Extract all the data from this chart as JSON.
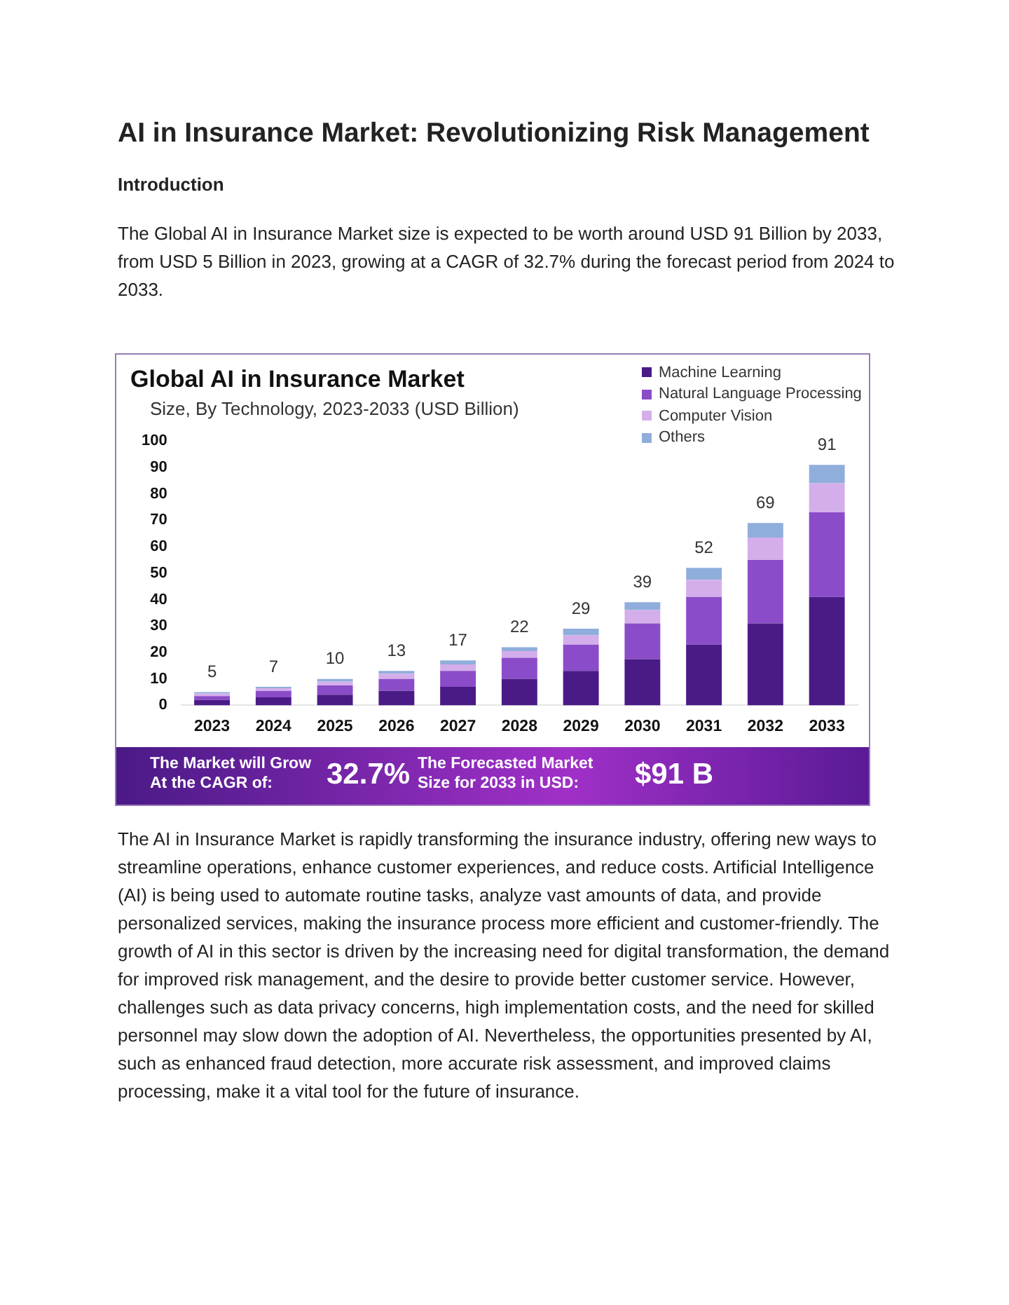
{
  "chart_data": {
    "type": "bar",
    "stacked": true,
    "title": "Global AI in Insurance Market",
    "subtitle": "Size, By Technology, 2023-2033 (USD Billion)",
    "categories": [
      "2023",
      "2024",
      "2025",
      "2026",
      "2027",
      "2028",
      "2029",
      "2030",
      "2031",
      "2032",
      "2033"
    ],
    "series": [
      {
        "name": "Machine Learning",
        "color": "#4a1a86",
        "values": [
          2,
          3,
          4,
          5.5,
          7,
          10,
          13,
          17.5,
          23,
          31,
          41
        ]
      },
      {
        "name": "Natural Language Processing",
        "color": "#8a4cc8",
        "values": [
          1.5,
          2.5,
          3.5,
          4.5,
          6,
          8,
          10,
          13.5,
          18,
          24,
          32
        ]
      },
      {
        "name": "Computer Vision",
        "color": "#d4aeea",
        "values": [
          1,
          1,
          1.5,
          2,
          2.5,
          2.5,
          3.5,
          5,
          6.5,
          8.5,
          11
        ]
      },
      {
        "name": "Others",
        "color": "#90aedc",
        "values": [
          0.5,
          0.5,
          1,
          1,
          1.5,
          1.5,
          2.5,
          3,
          4.5,
          5.5,
          7
        ]
      }
    ],
    "totals": [
      "5",
      "7",
      "10",
      "13",
      "17",
      "22",
      "29",
      "39",
      "52",
      "69",
      "91"
    ],
    "ylim": [
      0,
      100
    ],
    "yticks": [
      0,
      10,
      20,
      30,
      40,
      50,
      60,
      70,
      80,
      90,
      100
    ],
    "grid": false,
    "legend": "top right",
    "annotations": [
      "AI in Insurance Market: Revolutionizing Risk Management",
      "Introduction",
      "The Global AI in Insurance Market size is expected to be worth around USD 91 Billion by 2033, from USD 5 Billion in 2023, growing at a CAGR of 32.7% during the forecast period from 2024 to 2033.",
      "The Market will Grow At the CAGR of:",
      "32.7%",
      "The Forecasted Market Size for 2033 in USD:",
      "$91 B",
      "The AI in Insurance Market is rapidly transforming the insurance industry, offering new ways to streamline operations, enhance customer experiences, and reduce costs. Artificial Intelligence (AI) is being used to automate routine tasks, analyze vast amounts of data, and provide personalized services, making the insurance process more efficient and customer-friendly. The growth of AI in this sector is driven by the increasing need for digital transformation, the demand for improved risk management, and the desire to provide better customer service. However, challenges such as data privacy concerns, high implementation costs, and the need for skilled personnel may slow down the adoption of AI. Nevertheless, the opportunities presented by AI, such as enhanced fraud detection, more accurate risk assessment, and improved claims processing, make it a vital tool for the future of insurance."
    ]
  }
}
